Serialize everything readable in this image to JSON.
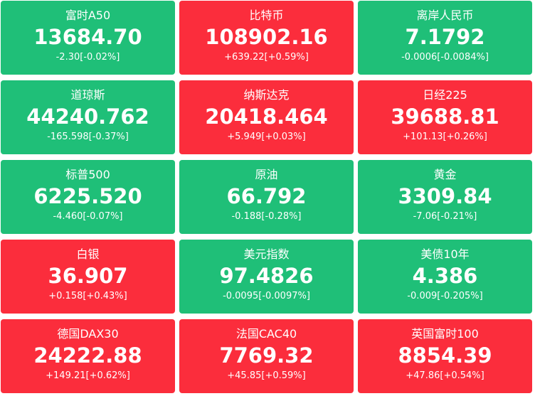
{
  "colors": {
    "up": "#fb2d3c",
    "down": "#1fbf78",
    "text": "#ffffff"
  },
  "tiles": [
    {
      "name": "富时A50",
      "price": "13684.70",
      "change": "-2.30[-0.02%]",
      "direction": "down"
    },
    {
      "name": "比特币",
      "price": "108902.16",
      "change": "+639.22[+0.59%]",
      "direction": "up"
    },
    {
      "name": "离岸人民币",
      "price": "7.1792",
      "change": "-0.0006[-0.0084%]",
      "direction": "down"
    },
    {
      "name": "道琼斯",
      "price": "44240.762",
      "change": "-165.598[-0.37%]",
      "direction": "down"
    },
    {
      "name": "纳斯达克",
      "price": "20418.464",
      "change": "+5.949[+0.03%]",
      "direction": "up"
    },
    {
      "name": "日经225",
      "price": "39688.81",
      "change": "+101.13[+0.26%]",
      "direction": "up"
    },
    {
      "name": "标普500",
      "price": "6225.520",
      "change": "-4.460[-0.07%]",
      "direction": "down"
    },
    {
      "name": "原油",
      "price": "66.792",
      "change": "-0.188[-0.28%]",
      "direction": "down"
    },
    {
      "name": "黄金",
      "price": "3309.84",
      "change": "-7.06[-0.21%]",
      "direction": "down"
    },
    {
      "name": "白银",
      "price": "36.907",
      "change": "+0.158[+0.43%]",
      "direction": "up"
    },
    {
      "name": "美元指数",
      "price": "97.4826",
      "change": "-0.0095[-0.0097%]",
      "direction": "down"
    },
    {
      "name": "美债10年",
      "price": "4.386",
      "change": "-0.009[-0.205%]",
      "direction": "down"
    },
    {
      "name": "德国DAX30",
      "price": "24222.88",
      "change": "+149.21[+0.62%]",
      "direction": "up"
    },
    {
      "name": "法国CAC40",
      "price": "7769.32",
      "change": "+45.85[+0.59%]",
      "direction": "up"
    },
    {
      "name": "英国富时100",
      "price": "8854.39",
      "change": "+47.86[+0.54%]",
      "direction": "up"
    }
  ]
}
